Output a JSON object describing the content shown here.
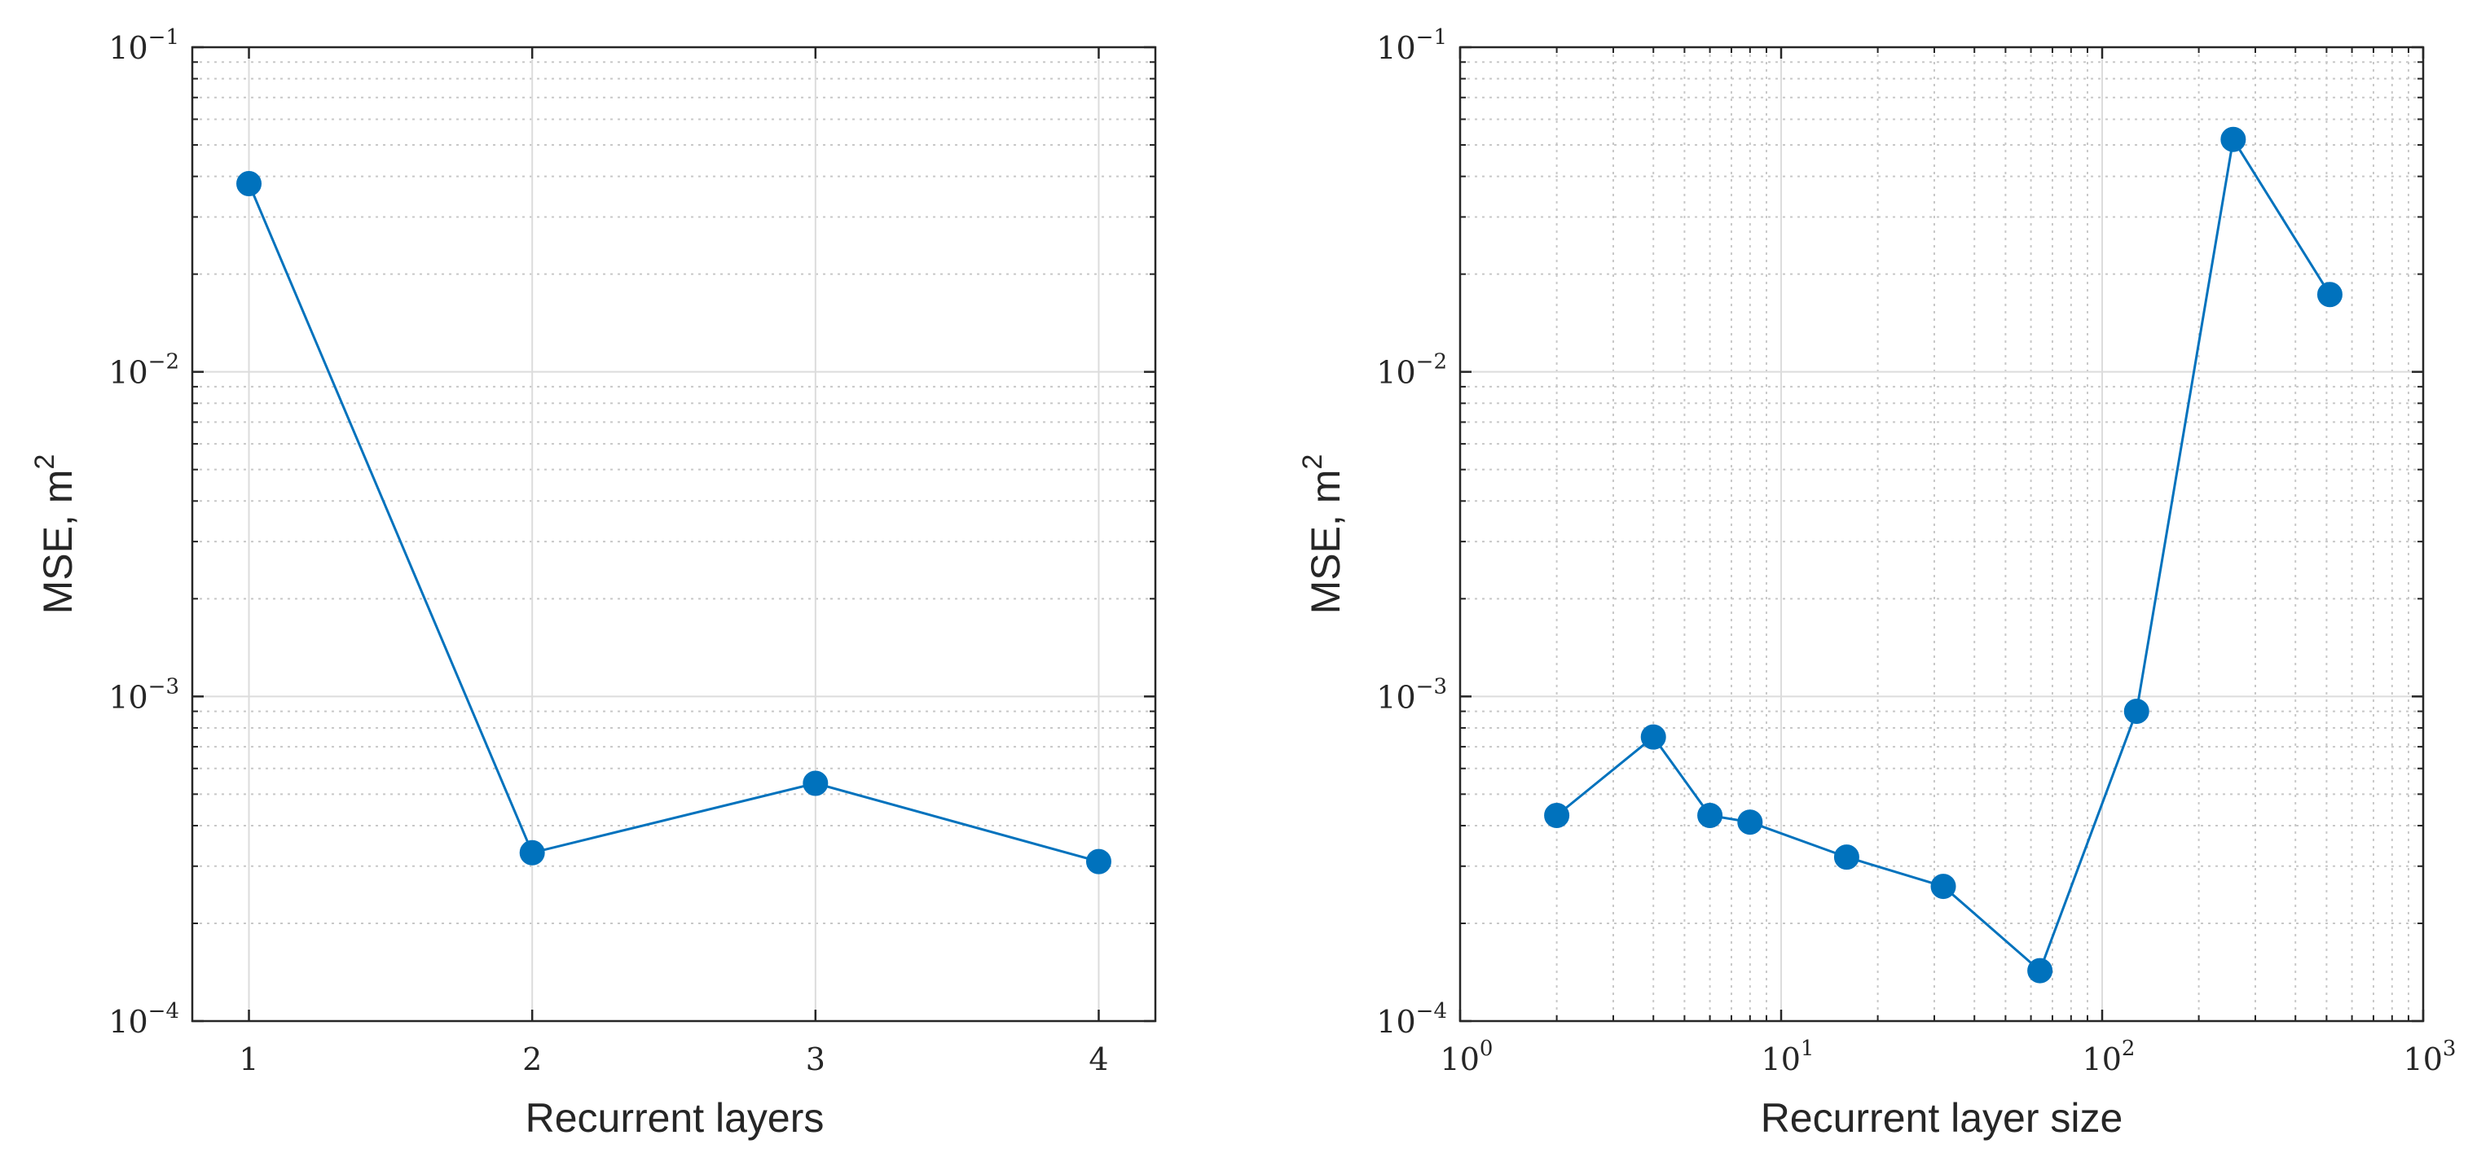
{
  "chart_data": [
    {
      "type": "line",
      "xscale": "linear",
      "yscale": "log",
      "title": "",
      "xlabel": "Recurrent layers",
      "ylabel": "MSE, m",
      "ylabel_superscript": "2",
      "xlim": [
        0.8,
        4.2
      ],
      "ylim": [
        0.0001,
        0.1
      ],
      "x_ticks": [
        1,
        2,
        3,
        4
      ],
      "x_tick_labels": [
        "1",
        "2",
        "3",
        "4"
      ],
      "y_ticks": [
        0.0001,
        0.001,
        0.01,
        0.1
      ],
      "y_tick_labels": [
        {
          "base": "10",
          "exp": "−4"
        },
        {
          "base": "10",
          "exp": "−3"
        },
        {
          "base": "10",
          "exp": "−2"
        },
        {
          "base": "10",
          "exp": "−1"
        }
      ],
      "grid": true,
      "minor_grid_y": true,
      "minor_grid_x": false,
      "series": [
        {
          "color": "#0072BD",
          "marker": "circle",
          "x": [
            1,
            2,
            3,
            4
          ],
          "y": [
            0.038,
            0.00033,
            0.00054,
            0.00031
          ]
        }
      ]
    },
    {
      "type": "line",
      "xscale": "log",
      "yscale": "log",
      "title": "",
      "xlabel": "Recurrent layer size",
      "ylabel": "MSE, m",
      "ylabel_superscript": "2",
      "xlim": [
        1,
        1000
      ],
      "ylim": [
        0.0001,
        0.1
      ],
      "x_ticks": [
        1,
        10,
        100,
        1000
      ],
      "x_tick_labels": [
        {
          "base": "10",
          "exp": "0"
        },
        {
          "base": "10",
          "exp": "1"
        },
        {
          "base": "10",
          "exp": "2"
        },
        {
          "base": "10",
          "exp": "3"
        }
      ],
      "y_ticks": [
        0.0001,
        0.001,
        0.01,
        0.1
      ],
      "y_tick_labels": [
        {
          "base": "10",
          "exp": "−4"
        },
        {
          "base": "10",
          "exp": "−3"
        },
        {
          "base": "10",
          "exp": "−2"
        },
        {
          "base": "10",
          "exp": "−1"
        }
      ],
      "grid": true,
      "minor_grid_y": true,
      "minor_grid_x": true,
      "series": [
        {
          "color": "#0072BD",
          "marker": "circle",
          "x": [
            2,
            4,
            6,
            8,
            16,
            32,
            64,
            128,
            256,
            512
          ],
          "y": [
            0.00043,
            0.00075,
            0.00043,
            0.00041,
            0.00032,
            0.00026,
            0.000143,
            0.0009,
            0.052,
            0.0173
          ]
        }
      ]
    }
  ]
}
